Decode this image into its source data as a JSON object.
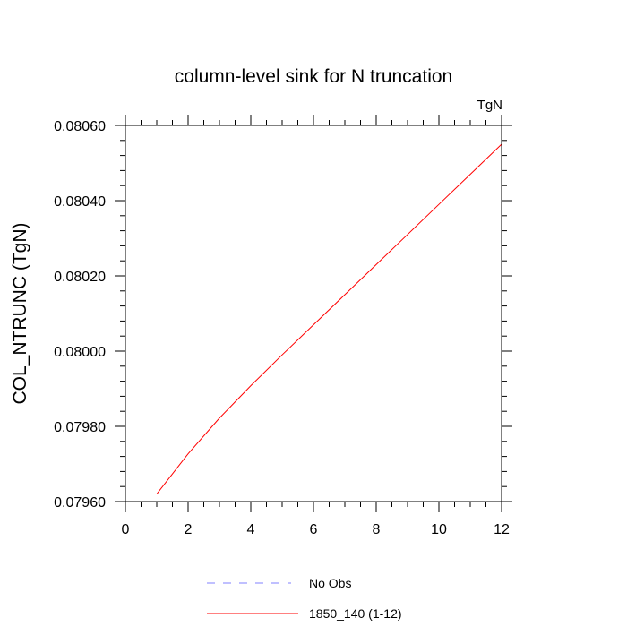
{
  "chart_data": {
    "type": "line",
    "title": "column-level sink for N truncation",
    "units_label": "TgN",
    "xlabel": "",
    "ylabel": "COL_NTRUNC  (TgN)",
    "xlim": [
      0,
      12
    ],
    "ylim": [
      0.0796,
      0.0806
    ],
    "x_ticks": [
      0,
      2,
      4,
      6,
      8,
      10,
      12
    ],
    "x_tick_labels": [
      "0",
      "2",
      "4",
      "6",
      "8",
      "10",
      "12"
    ],
    "y_ticks": [
      0.0796,
      0.0798,
      0.08,
      0.0802,
      0.0804,
      0.0806
    ],
    "y_tick_labels": [
      "0.07960",
      "0.07980",
      "0.08000",
      "0.08020",
      "0.08040",
      "0.08060"
    ],
    "grid": false,
    "legend_position": "bottom",
    "series": [
      {
        "name": "No Obs",
        "color": "#8080ff",
        "style": "dashed",
        "x": [],
        "y": []
      },
      {
        "name": "1850_140 (1-12)",
        "color": "#ff0000",
        "style": "solid",
        "x": [
          1,
          2,
          3,
          4,
          5,
          6,
          7,
          8,
          9,
          10,
          11,
          12
        ],
        "y": [
          0.07962,
          0.079727,
          0.079822,
          0.079908,
          0.07999,
          0.08007,
          0.08015,
          0.08023,
          0.08031,
          0.08039,
          0.08047,
          0.08055
        ]
      }
    ]
  }
}
